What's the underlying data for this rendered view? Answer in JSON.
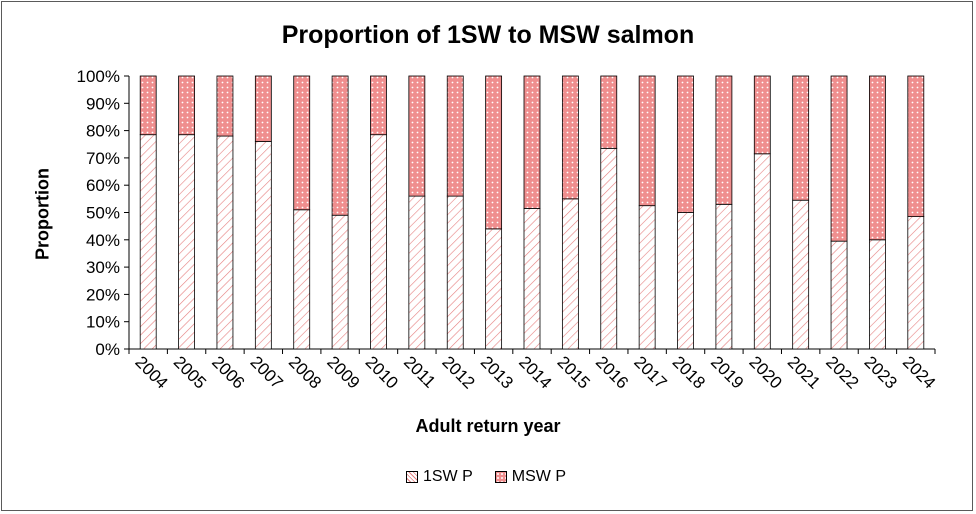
{
  "chart_data": {
    "type": "bar",
    "stacked": true,
    "percent_stacked": true,
    "title": "Proportion of 1SW to MSW salmon",
    "xlabel": "Adult return year",
    "ylabel": "Proportion",
    "ylim": [
      0,
      100
    ],
    "yticks": [
      "0%",
      "10%",
      "20%",
      "30%",
      "40%",
      "50%",
      "60%",
      "70%",
      "80%",
      "90%",
      "100%"
    ],
    "categories": [
      "2004",
      "2005",
      "2006",
      "2007",
      "2008",
      "2009",
      "2010",
      "2011",
      "2012",
      "2013",
      "2014",
      "2015",
      "2016",
      "2017",
      "2018",
      "2019",
      "2020",
      "2021",
      "2022",
      "2023",
      "2024"
    ],
    "series": [
      {
        "name": "1SW P",
        "color": "#f29a9a",
        "pattern": "diagonal-hatch",
        "values": [
          78.5,
          78.5,
          78,
          76,
          51,
          49,
          78.5,
          56,
          56,
          44,
          51.5,
          55,
          73.5,
          52.5,
          50,
          53,
          71.5,
          54.5,
          39.5,
          40,
          48.5
        ]
      },
      {
        "name": "MSW P",
        "color": "#ee8a8a",
        "pattern": "dots",
        "values": [
          21.5,
          21.5,
          22,
          24,
          49,
          51,
          21.5,
          44,
          44,
          56,
          48.5,
          45,
          26.5,
          47.5,
          50,
          47,
          28.5,
          45.5,
          60.5,
          60,
          51.5
        ]
      }
    ],
    "grid": false,
    "legend_position": "bottom"
  }
}
